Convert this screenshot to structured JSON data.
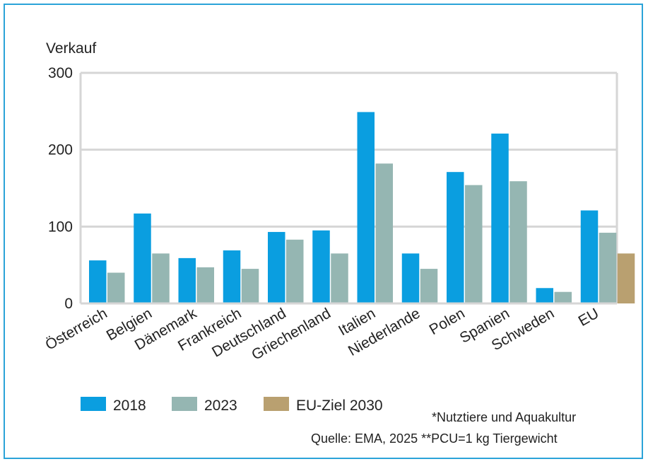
{
  "chart_data": {
    "type": "bar",
    "ylabel": "Verkauf",
    "ylim": [
      0,
      300
    ],
    "yticks": [
      0,
      100,
      200,
      300
    ],
    "grid": true,
    "legend_position": "bottom-left",
    "categories": [
      "Österreich",
      "Belgien",
      "Dänemark",
      "Frankreich",
      "Deutschland",
      "Griechenland",
      "Italien",
      "Niederlande",
      "Polen",
      "Spanien",
      "Schweden",
      "EU"
    ],
    "series": [
      {
        "name": "2018",
        "color": "#0a9ee0",
        "values": [
          56,
          117,
          59,
          69,
          93,
          95,
          249,
          65,
          171,
          221,
          20,
          121
        ]
      },
      {
        "name": "2023",
        "color": "#95b6b2",
        "values": [
          40,
          65,
          47,
          45,
          83,
          65,
          182,
          45,
          154,
          159,
          15,
          92
        ]
      },
      {
        "name": "EU-Ziel 2030",
        "color": "#b9a070",
        "values": [
          null,
          null,
          null,
          null,
          null,
          null,
          null,
          null,
          null,
          null,
          null,
          65
        ]
      }
    ]
  },
  "notes": {
    "footnote": "*Nutztiere und Aquakultur",
    "source": "Quelle: EMA, 2025    **PCU=1 kg Tiergewicht"
  },
  "colors": {
    "frame": "#2ba3d8",
    "grid": "#d6d6d6"
  }
}
